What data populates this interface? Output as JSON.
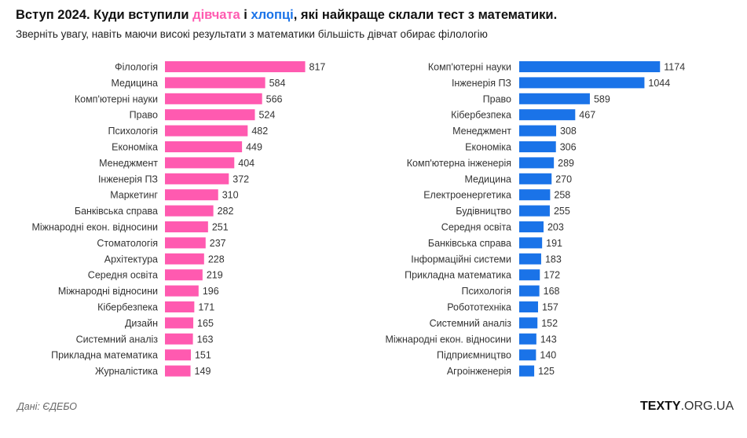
{
  "title": {
    "prefix": "Вступ 2024. Куди вступили ",
    "girls": "дівчата",
    "middle": " і ",
    "boys": "хлопці",
    "suffix": ", які найкраще склали тест з математики."
  },
  "subtitle": "Зверніть увагу, навіть маючи високі результати з математики більшість дівчат обирає філологію",
  "source": "Дані: ЄДЕБО",
  "brand": {
    "bold": "TEXTY",
    "light": ".ORG.UA"
  },
  "colors": {
    "girls": "#ff5ab0",
    "boys": "#1a73e8"
  },
  "chart_data": [
    {
      "type": "bar",
      "orientation": "horizontal",
      "series_color": "#ff5ab0",
      "categories": [
        "Філологія",
        "Медицина",
        "Комп'ютерні науки",
        "Право",
        "Психологія",
        "Економіка",
        "Менеджмент",
        "Інженерія ПЗ",
        "Маркетинг",
        "Банківська справа",
        "Міжнародні екон. відносини",
        "Стоматологія",
        "Архітектура",
        "Середня освіта",
        "Міжнародні відносини",
        "Кібербезпека",
        "Дизайн",
        "Системний аналіз",
        "Прикладна математика",
        "Журналістика"
      ],
      "values": [
        817,
        584,
        566,
        524,
        482,
        449,
        404,
        372,
        310,
        282,
        251,
        237,
        228,
        219,
        196,
        171,
        165,
        163,
        151,
        149
      ]
    },
    {
      "type": "bar",
      "orientation": "horizontal",
      "series_color": "#1a73e8",
      "categories": [
        "Комп'ютерні науки",
        "Інженерія ПЗ",
        "Право",
        "Кібербезпека",
        "Менеджмент",
        "Економіка",
        "Комп'ютерна інженерія",
        "Медицина",
        "Електроенергетика",
        "Будівництво",
        "Середня освіта",
        "Банківська справа",
        "Інформаційні системи",
        "Прикладна математика",
        "Психологія",
        "Робототехніка",
        "Системний аналіз",
        "Міжнародні екон. відносини",
        "Підприємництво",
        "Агроінженерія"
      ],
      "values": [
        1174,
        1044,
        589,
        467,
        308,
        306,
        289,
        270,
        258,
        255,
        203,
        191,
        183,
        172,
        168,
        157,
        152,
        143,
        140,
        125
      ]
    }
  ]
}
